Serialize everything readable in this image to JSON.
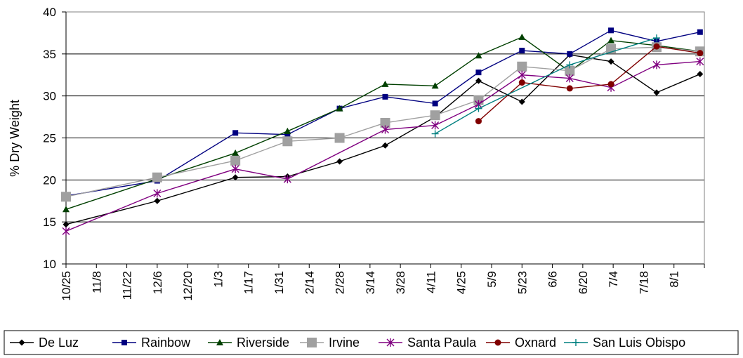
{
  "chart_data": {
    "type": "line",
    "title": "",
    "xlabel": "",
    "ylabel": "% Dry Weight",
    "ylim": [
      10,
      40
    ],
    "yticks": [
      10,
      15,
      20,
      25,
      30,
      35,
      40
    ],
    "grid": "horizontal",
    "legend_position": "bottom",
    "x_tick_labels": [
      "10/25",
      "11/8",
      "11/22",
      "12/6",
      "12/20",
      "1/3",
      "1/17",
      "1/31",
      "2/14",
      "2/28",
      "3/14",
      "3/28",
      "4/11",
      "4/25",
      "5/9",
      "5/23",
      "6/6",
      "6/20",
      "7/4",
      "7/18",
      "8/1"
    ],
    "series": [
      {
        "name": "De Luz",
        "color": "#000000",
        "marker": "diamond",
        "points": [
          [
            "10/25",
            14.7
          ],
          [
            "12/6",
            17.5
          ],
          [
            "1/11",
            20.3
          ],
          [
            "2/4",
            20.4
          ],
          [
            "2/28",
            22.2
          ],
          [
            "3/21",
            24.1
          ],
          [
            "4/13",
            27.5
          ],
          [
            "5/3",
            31.8
          ],
          [
            "5/23",
            29.3
          ],
          [
            "6/14",
            34.9
          ],
          [
            "7/3",
            34.1
          ],
          [
            "7/24",
            30.4
          ],
          [
            "8/13",
            32.6
          ]
        ]
      },
      {
        "name": "Rainbow",
        "color": "#000080",
        "marker": "square",
        "points": [
          [
            "10/25",
            18.1
          ],
          [
            "12/6",
            19.9
          ],
          [
            "1/11",
            25.6
          ],
          [
            "2/4",
            25.4
          ],
          [
            "2/28",
            28.5
          ],
          [
            "3/21",
            29.9
          ],
          [
            "4/13",
            29.1
          ],
          [
            "5/3",
            32.8
          ],
          [
            "5/23",
            35.4
          ],
          [
            "6/14",
            35.0
          ],
          [
            "7/3",
            37.8
          ],
          [
            "7/24",
            36.5
          ],
          [
            "8/13",
            37.6
          ]
        ]
      },
      {
        "name": "Riverside",
        "color": "#004000",
        "marker": "triangle",
        "points": [
          [
            "10/25",
            16.5
          ],
          [
            "1/11",
            23.2
          ],
          [
            "2/4",
            25.8
          ],
          [
            "2/28",
            28.5
          ],
          [
            "3/21",
            31.4
          ],
          [
            "4/13",
            31.2
          ],
          [
            "5/3",
            34.8
          ],
          [
            "5/23",
            37.0
          ],
          [
            "6/14",
            32.9
          ],
          [
            "7/3",
            36.6
          ],
          [
            "7/24",
            36.0
          ],
          [
            "8/13",
            35.3
          ]
        ]
      },
      {
        "name": "Irvine",
        "color": "#a0a0a0",
        "marker": "bigsquare",
        "points": [
          [
            "10/25",
            18.0
          ],
          [
            "12/6",
            20.3
          ],
          [
            "1/11",
            22.3
          ],
          [
            "2/4",
            24.6
          ],
          [
            "2/28",
            25.0
          ],
          [
            "3/21",
            26.8
          ],
          [
            "4/13",
            27.7
          ],
          [
            "5/3",
            29.5
          ],
          [
            "5/23",
            33.5
          ],
          [
            "6/14",
            33.0
          ],
          [
            "7/3",
            35.6
          ],
          [
            "7/24",
            35.8
          ],
          [
            "8/13",
            35.3
          ]
        ]
      },
      {
        "name": "Santa Paula",
        "color": "#800080",
        "marker": "star",
        "points": [
          [
            "10/25",
            13.9
          ],
          [
            "12/6",
            18.4
          ],
          [
            "1/11",
            21.3
          ],
          [
            "2/4",
            20.1
          ],
          [
            "3/21",
            26.0
          ],
          [
            "4/13",
            26.5
          ],
          [
            "5/3",
            29.0
          ],
          [
            "5/23",
            32.5
          ],
          [
            "6/14",
            32.1
          ],
          [
            "7/3",
            31.0
          ],
          [
            "7/24",
            33.7
          ],
          [
            "8/13",
            34.1
          ]
        ]
      },
      {
        "name": "Oxnard",
        "color": "#800000",
        "marker": "circle",
        "points": [
          [
            "5/3",
            27.0
          ],
          [
            "5/23",
            31.6
          ],
          [
            "6/14",
            30.9
          ],
          [
            "7/3",
            31.4
          ],
          [
            "7/24",
            35.9
          ],
          [
            "8/13",
            35.1
          ]
        ]
      },
      {
        "name": "San Luis Obispo",
        "color": "#008080",
        "marker": "plus",
        "points": [
          [
            "4/13",
            25.5
          ],
          [
            "5/3",
            28.5
          ],
          [
            "6/14",
            33.7
          ],
          [
            "7/24",
            36.9
          ]
        ]
      }
    ]
  }
}
